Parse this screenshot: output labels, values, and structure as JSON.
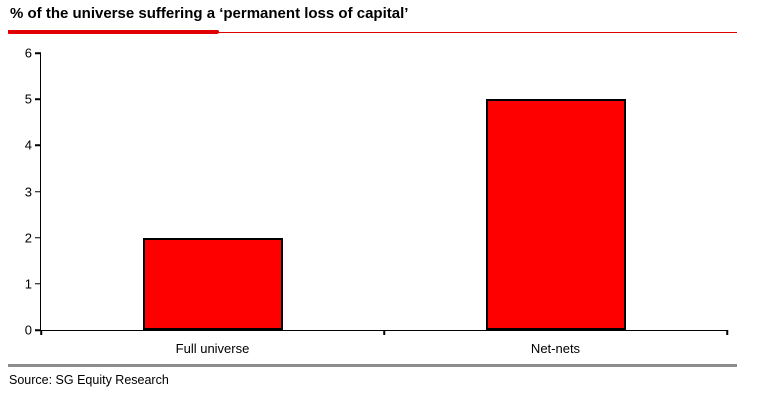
{
  "page": {
    "background": "#ffffff"
  },
  "header": {
    "title": "% of the universe suffering a ‘permanent loss of capital’",
    "accent_color": "#e00000"
  },
  "chart_data": {
    "type": "bar",
    "title": "% of the universe suffering a ‘permanent loss of capital’",
    "categories": [
      "Full universe",
      "Net-nets"
    ],
    "values": [
      2,
      5
    ],
    "xlabel": "",
    "ylabel": "",
    "ylim": [
      0,
      6
    ],
    "yticks": [
      0,
      1,
      2,
      3,
      4,
      5,
      6
    ],
    "ytick_step": 1,
    "grid": false,
    "legend": false,
    "bar_color": "#ff0000",
    "bar_border_color": "#000000",
    "axis_color": "#000000"
  },
  "footer": {
    "separator_color": "#8c8c8c",
    "source": "Source: SG Equity Research"
  }
}
